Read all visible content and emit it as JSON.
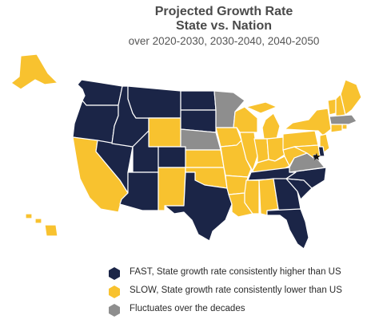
{
  "title": "Projected Growth Rate",
  "title2": "State vs. Nation",
  "subtitle": "over 2020-2030, 2030-2040, 2040-2050",
  "colors": {
    "fast": "#1b2547",
    "slow": "#f8c22f",
    "fluct": "#8e8e8e",
    "border": "#ffffff"
  },
  "legend": [
    {
      "key": "fast",
      "label": "FAST, State growth rate consistently higher than US"
    },
    {
      "key": "slow",
      "label": "SLOW, State growth rate consistently lower than US"
    },
    {
      "key": "fluct",
      "label": "Fluctuates over the decades"
    }
  ],
  "states": {
    "WA": "fast",
    "OR": "fast",
    "CA": "slow",
    "NV": "fast",
    "ID": "fast",
    "MT": "fast",
    "WY": "slow",
    "UT": "fast",
    "AZ": "fast",
    "CO": "fast",
    "NM": "slow",
    "ND": "fast",
    "SD": "fast",
    "NE": "fluct",
    "KS": "slow",
    "OK": "slow",
    "TX": "fast",
    "MN": "fluct",
    "IA": "slow",
    "MO": "slow",
    "AR": "slow",
    "LA": "slow",
    "WI": "slow",
    "IL": "slow",
    "MI": "slow",
    "IN": "slow",
    "OH": "slow",
    "KY": "slow",
    "TN": "fast",
    "MS": "slow",
    "AL": "slow",
    "GA": "fast",
    "FL": "fast",
    "SC": "fast",
    "NC": "fast",
    "VA": "fluct",
    "WV": "slow",
    "PA": "slow",
    "NY": "slow",
    "VT": "slow",
    "NH": "slow",
    "ME": "slow",
    "MA": "fluct",
    "RI": "slow",
    "CT": "slow",
    "NJ": "slow",
    "DE": "fast",
    "MD": "slow",
    "DC": "fast",
    "AK": "slow",
    "HI": "slow"
  }
}
